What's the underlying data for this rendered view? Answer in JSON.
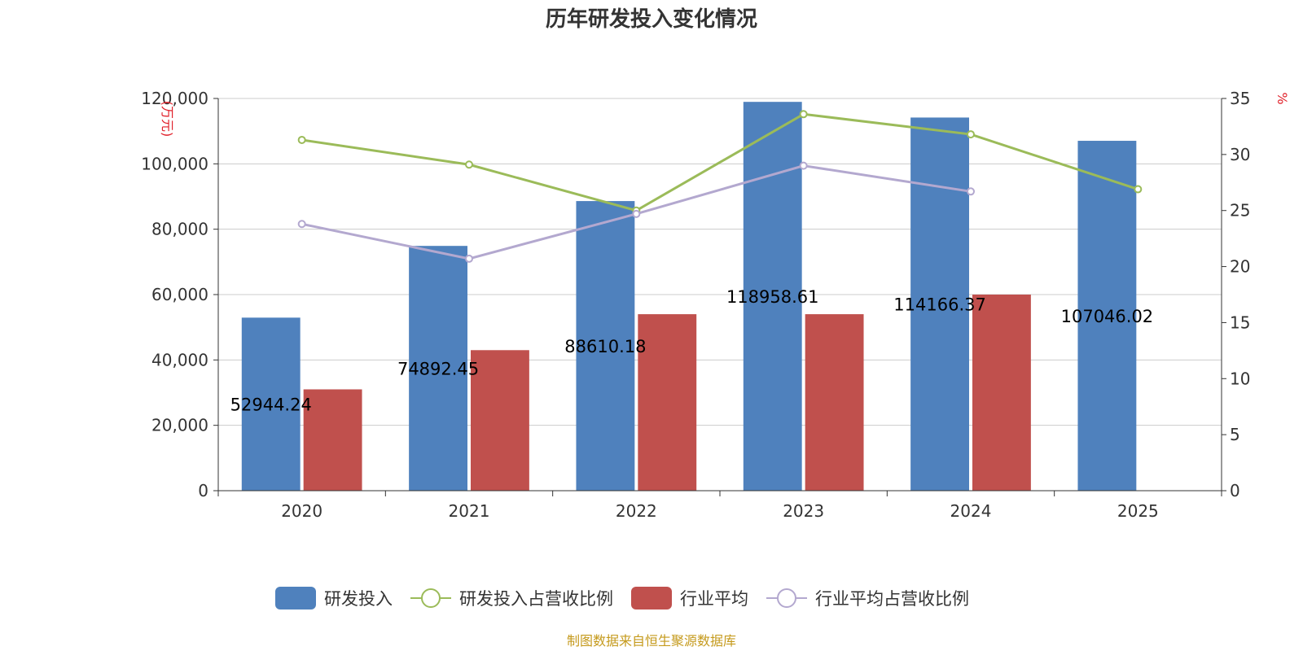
{
  "chart_data": {
    "type": "bar",
    "title": "历年研发投入变化情况",
    "categories": [
      "2020",
      "2021",
      "2022",
      "2023",
      "2024",
      "2025"
    ],
    "series": [
      {
        "name": "研发投入",
        "kind": "bar",
        "axis": "left",
        "color": "#4f81bd",
        "values": [
          52944.24,
          74892.45,
          88610.18,
          118958.61,
          114166.37,
          107046.02
        ]
      },
      {
        "name": "研发投入占营收比例",
        "kind": "line",
        "axis": "right",
        "color": "#9bbb59",
        "values": [
          31.3,
          29.1,
          25.0,
          33.6,
          31.8,
          26.9
        ]
      },
      {
        "name": "行业平均",
        "kind": "bar",
        "axis": "left",
        "color": "#c0504d",
        "values": [
          31000,
          43000,
          54000,
          54000,
          60000,
          null
        ]
      },
      {
        "name": "行业平均占营收比例",
        "kind": "line",
        "axis": "right",
        "color": "#b3a8cf",
        "values": [
          23.8,
          20.7,
          24.7,
          29.0,
          26.7,
          null
        ]
      }
    ],
    "data_labels": [
      "52944.24",
      "74892.45",
      "88610.18",
      "118958.61",
      "114166.37",
      "107046.02"
    ],
    "y_left": {
      "label": "(万元)",
      "ylim": [
        0,
        120000
      ],
      "ticks": [
        "0",
        "20,000",
        "40,000",
        "60,000",
        "80,000",
        "100,000",
        "120,000"
      ],
      "tick_values": [
        0,
        20000,
        40000,
        60000,
        80000,
        100000,
        120000
      ]
    },
    "y_right": {
      "label": "%",
      "ylim": [
        0,
        35
      ],
      "ticks": [
        "0",
        "5",
        "10",
        "15",
        "20",
        "25",
        "30",
        "35"
      ],
      "tick_values": [
        0,
        5,
        10,
        15,
        20,
        25,
        30,
        35
      ]
    },
    "legend_position": "bottom-center",
    "grid": true
  },
  "source_note": "制图数据来自恒生聚源数据库",
  "colors": {
    "axis": "#333333",
    "grid": "#cccccc",
    "unit_label": "#e0202a",
    "source_note": "#c59a1c"
  }
}
